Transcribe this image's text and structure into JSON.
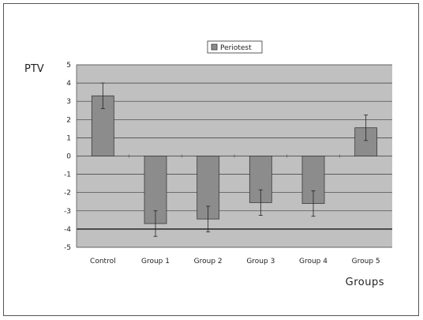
{
  "chart_data": {
    "type": "bar",
    "title": "",
    "ylabel": "PTV",
    "xlabel": "Groups",
    "categories": [
      "Control",
      "Group 1",
      "Group 2",
      "Group 3",
      "Group 4",
      "Group 5"
    ],
    "series": [
      {
        "name": "Periotest",
        "values": [
          3.3,
          -3.7,
          -3.45,
          -2.55,
          -2.6,
          1.55
        ],
        "error": [
          0.7,
          0.7,
          0.7,
          0.7,
          0.7,
          0.7
        ]
      }
    ],
    "ylim": [
      -5,
      5
    ],
    "yticks": [
      "5",
      "4",
      "3",
      "2",
      "1",
      "0",
      "-1",
      "-2",
      "-3",
      "-4",
      "-5"
    ],
    "grid": true,
    "legend_position": "top-center",
    "colors": {
      "plot_bg": "#c0c0c0",
      "bar_fill": "#8c8c8c",
      "bar_stroke": "#3a3a3a",
      "grid": "#3a3a3a"
    }
  }
}
